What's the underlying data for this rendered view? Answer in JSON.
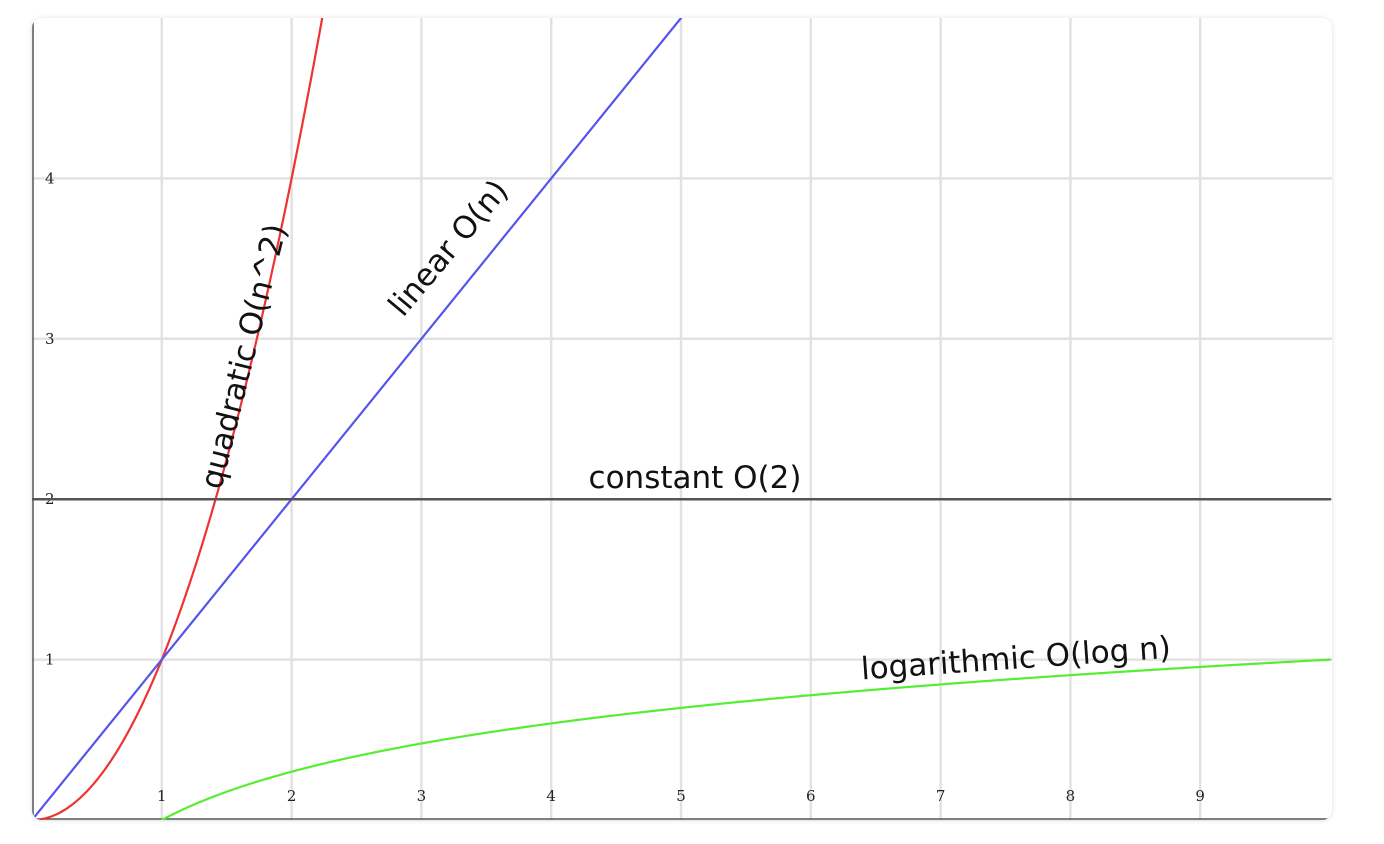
{
  "chart_data": {
    "type": "line",
    "title": "",
    "xlabel": "",
    "ylabel": "",
    "xlim": [
      0,
      10
    ],
    "ylim": [
      0,
      5
    ],
    "grid": true,
    "x_ticks": [
      1,
      2,
      3,
      4,
      5,
      6,
      7,
      8,
      9
    ],
    "y_ticks": [
      1,
      2,
      3,
      4
    ],
    "series": [
      {
        "key": "quadratic",
        "color": "#ee3333",
        "x": [
          0,
          0.25,
          0.5,
          0.75,
          1,
          1.25,
          1.5,
          1.75,
          2,
          2.25
        ],
        "y": [
          0,
          0.0625,
          0.25,
          0.5625,
          1,
          1.5625,
          2.25,
          3.0625,
          4,
          5.0625
        ]
      },
      {
        "key": "linear",
        "color": "#5555ee",
        "x": [
          0,
          1,
          2,
          3,
          4,
          5
        ],
        "y": [
          0,
          1,
          2,
          3,
          4,
          5
        ]
      },
      {
        "key": "constant",
        "color": "#555555",
        "x": [
          0,
          10
        ],
        "y": [
          2,
          2
        ]
      },
      {
        "key": "logarithmic",
        "color": "#55ee33",
        "x": [
          1,
          1.5,
          2,
          3,
          4,
          5,
          6,
          7,
          8,
          9,
          10
        ],
        "y": [
          0,
          0.176,
          0.301,
          0.477,
          0.602,
          0.699,
          0.778,
          0.845,
          0.903,
          0.954,
          1
        ]
      }
    ],
    "annotations": [
      {
        "key": "quadratic",
        "text": "quadratic O(n^2)"
      },
      {
        "key": "linear",
        "text": "linear O(n)"
      },
      {
        "key": "constant",
        "text": "constant O(2)"
      },
      {
        "key": "logarithmic",
        "text": "logarithmic O(log n)"
      }
    ]
  }
}
